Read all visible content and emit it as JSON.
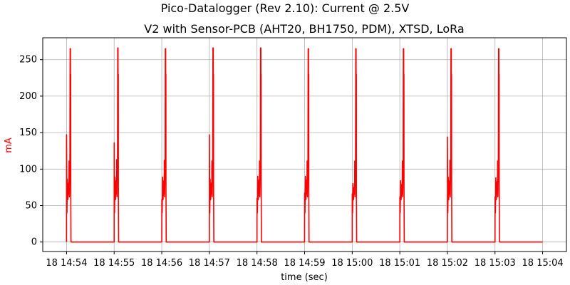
{
  "figure": {
    "suptitle": "Pico-Datalogger (Rev 2.10): Current @ 2.5V"
  },
  "chart_data": {
    "type": "line",
    "title": "V2 with Sensor-PCB (AHT20, BH1750, PDM), XTSD, LoRa",
    "xlabel": "time (sec)",
    "ylabel": "mA",
    "ylabel_color": "#ff0000",
    "line_color": "#ff0000",
    "grid": true,
    "ylim": [
      -13,
      280
    ],
    "xlim_minutes": [
      "14:53.5",
      "15:04.5"
    ],
    "yticks": [
      0,
      50,
      100,
      150,
      200,
      250
    ],
    "xticks": [
      "18 14:54",
      "18 14:55",
      "18 14:56",
      "18 14:57",
      "18 14:58",
      "18 14:59",
      "18 15:00",
      "18 15:01",
      "18 15:02",
      "18 15:03",
      "18 15:04"
    ],
    "series": [
      {
        "values_description_free": true,
        "x_time": [
          "14:54:00",
          "14:54:00",
          "14:54:01",
          "14:54:01",
          "14:54:02",
          "14:54:02",
          "14:54:02",
          "14:54:03",
          "14:54:03",
          "14:54:03",
          "14:54:04",
          "14:54:04",
          "14:54:04",
          "14:54:05",
          "14:54:05",
          "14:54:06",
          "14:54:06",
          "14:55:00",
          "14:55:06",
          "14:55:06",
          "14:55:06",
          "14:55:07",
          "14:55:07",
          "14:55:07",
          "14:55:08",
          "14:55:08",
          "14:55:08",
          "14:55:09",
          "14:55:09",
          "14:55:09",
          "14:55:10",
          "14:55:10",
          "14:55:11",
          "14:55:11",
          "14:56:00",
          "14:56:12",
          "14:56:12",
          "14:56:12",
          "14:56:13",
          "14:56:13",
          "14:56:13",
          "14:56:14",
          "14:56:14",
          "14:56:14",
          "14:56:15",
          "14:56:15",
          "14:56:15",
          "14:56:16",
          "14:56:16",
          "14:56:17",
          "14:56:17",
          "14:57:00",
          "14:57:18",
          "14:57:18",
          "14:57:18",
          "14:57:19",
          "14:57:19",
          "14:57:19",
          "14:57:20",
          "14:57:20",
          "14:57:20",
          "14:57:21",
          "14:57:21",
          "14:57:21",
          "14:57:22",
          "14:57:22",
          "14:57:23",
          "14:57:23",
          "14:58:00",
          "14:58:24",
          "14:58:24",
          "14:58:24",
          "14:58:25",
          "14:58:25",
          "14:58:25",
          "14:58:26",
          "14:58:26",
          "14:58:26",
          "14:58:27",
          "14:58:27",
          "14:58:27",
          "14:58:28",
          "14:58:28",
          "14:58:29",
          "14:58:29",
          "14:59:00",
          "14:59:30",
          "14:59:30",
          "14:59:30",
          "14:59:31",
          "14:59:31",
          "14:59:31",
          "14:59:32",
          "14:59:32",
          "14:59:32",
          "14:59:33",
          "14:59:33",
          "14:59:33",
          "14:59:34",
          "14:59:34",
          "14:59:35",
          "14:59:35",
          "15:00:00",
          "15:00:36",
          "15:00:36",
          "15:00:36",
          "15:00:37",
          "15:00:37",
          "15:00:37",
          "15:00:38",
          "15:00:38",
          "15:00:38",
          "15:00:39",
          "15:00:39",
          "15:00:39",
          "15:00:40",
          "15:00:40",
          "15:00:41",
          "15:00:41",
          "15:01:00",
          "15:01:42",
          "15:01:42",
          "15:01:42",
          "15:01:43",
          "15:01:43",
          "15:01:43",
          "15:01:44",
          "15:01:44",
          "15:01:44",
          "15:01:45",
          "15:01:45",
          "15:01:45",
          "15:01:46",
          "15:01:46",
          "15:01:47",
          "15:01:47",
          "15:02:00",
          "15:02:48",
          "15:02:48",
          "15:02:48",
          "15:02:49",
          "15:02:49",
          "15:02:49",
          "15:02:50",
          "15:02:50",
          "15:02:50",
          "15:02:51",
          "15:02:51",
          "15:02:51",
          "15:02:52",
          "15:02:52",
          "15:02:53",
          "15:02:53",
          "15:03:00",
          "15:03:54",
          "15:03:54",
          "15:03:54",
          "15:03:55",
          "15:03:55",
          "15:03:55",
          "15:03:56",
          "15:03:56",
          "15:03:56",
          "15:03:57",
          "15:03:57",
          "15:03:57",
          "15:03:58",
          "15:03:58",
          "15:03:59",
          "15:03:59",
          "15:04:00"
        ],
        "x_note": "",
        "events": [
          {
            "start": "14:54:00",
            "peak_pre": 147,
            "mid": 86,
            "second_peak": 111,
            "top": 265
          },
          {
            "start": "14:55:00",
            "peak_pre": 136,
            "mid": 89,
            "second_peak": 113,
            "top": 266
          },
          {
            "start": "14:56:00",
            "peak_pre": 58,
            "mid": 89,
            "second_peak": 112,
            "top": 265
          },
          {
            "start": "14:57:00",
            "peak_pre": 147,
            "mid": 86,
            "second_peak": 111,
            "top": 266
          },
          {
            "start": "14:58:00",
            "peak_pre": 60,
            "mid": 90,
            "second_peak": 111,
            "top": 266
          },
          {
            "start": "14:59:00",
            "peak_pre": 67,
            "mid": 90,
            "second_peak": 111,
            "top": 265
          },
          {
            "start": "15:00:00",
            "peak_pre": 66,
            "mid": 80,
            "second_peak": 111,
            "top": 265
          },
          {
            "start": "15:01:00",
            "peak_pre": 62,
            "mid": 84,
            "second_peak": 111,
            "top": 265
          },
          {
            "start": "15:02:00",
            "peak_pre": 144,
            "mid": 89,
            "second_peak": 112,
            "top": 265
          },
          {
            "start": "15:03:00",
            "peak_pre": 62,
            "mid": 88,
            "second_peak": 111,
            "top": 265
          }
        ],
        "baseline": 0
      }
    ]
  }
}
